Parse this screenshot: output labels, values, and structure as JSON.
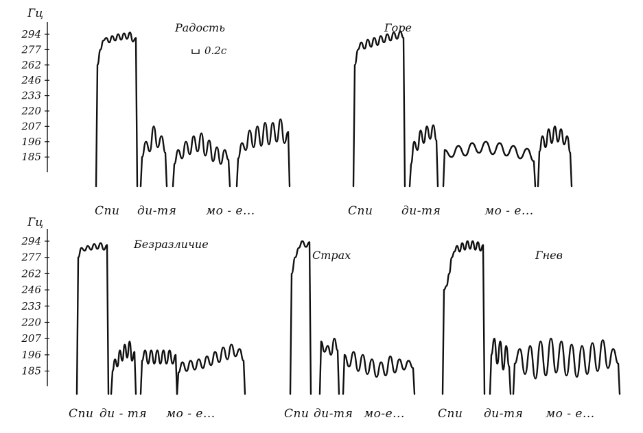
{
  "chart_data": [
    {
      "type": "line",
      "title": "Радость",
      "unit_label": "Гц",
      "y_ticks": [
        "294",
        "277",
        "262",
        "246",
        "233",
        "220",
        "207",
        "196",
        "185"
      ],
      "time_scale_label": "0.2с",
      "x_labels": [
        "Спи",
        "ди-тя",
        "мо - е..."
      ],
      "series": [
        {
          "values": [
            262,
            277,
            287,
            290,
            285,
            292,
            287,
            294,
            288,
            295,
            289,
            296,
            286,
            290
          ]
        },
        {
          "values": [
            185,
            196,
            189,
            207,
            192,
            200,
            188
          ]
        },
        {
          "values": [
            180,
            190,
            184,
            196,
            187,
            200,
            189,
            202,
            186,
            197,
            182,
            192,
            180,
            190,
            183
          ]
        },
        {
          "values": [
            184,
            195,
            190,
            204,
            192,
            207,
            193,
            210,
            194,
            210,
            196,
            213,
            195,
            203
          ]
        }
      ]
    },
    {
      "type": "line",
      "title": "Горе",
      "unit_label": "",
      "time_scale_label": "",
      "x_labels": [
        "Спи",
        "ди-тя",
        "мо - е..."
      ],
      "series": [
        {
          "values": [
            262,
            277,
            285,
            278,
            288,
            280,
            290,
            282,
            292,
            285,
            294,
            287,
            296,
            289,
            297,
            290
          ]
        },
        {
          "values": [
            180,
            196,
            190,
            204,
            195,
            207,
            198,
            208,
            197
          ]
        },
        {
          "values": [
            190,
            185,
            193,
            186,
            195,
            188,
            196,
            187,
            195,
            186,
            193,
            184,
            191,
            182
          ]
        },
        {
          "values": [
            189,
            200,
            192,
            205,
            195,
            207,
            196,
            205,
            194,
            200,
            188
          ]
        }
      ]
    },
    {
      "type": "line",
      "title": "Безразличие",
      "unit_label": "Гц",
      "y_ticks": [
        "294",
        "277",
        "262",
        "246",
        "233",
        "220",
        "207",
        "196",
        "185"
      ],
      "time_scale_label": "",
      "x_labels": [
        "Спи",
        "ди - тя",
        "мо - е..."
      ],
      "series": [
        {
          "values": [
            277,
            287,
            284,
            289,
            285,
            291,
            286,
            292,
            285,
            290
          ]
        },
        {
          "values": [
            185,
            193,
            188,
            199,
            192,
            203,
            194,
            205,
            192,
            198
          ]
        },
        {
          "values": [
            192,
            199,
            190,
            199,
            190,
            199,
            190,
            199,
            190,
            199,
            190,
            196
          ]
        },
        {
          "values": [
            184,
            191,
            185,
            192,
            186,
            193,
            187,
            195,
            189,
            198,
            191,
            201,
            193,
            203,
            195,
            200,
            192
          ]
        }
      ]
    },
    {
      "type": "line",
      "title": "Страх",
      "unit_label": "",
      "time_scale_label": "",
      "x_labels": [
        "Спи",
        "ди-тя",
        "мо-е..."
      ],
      "series": [
        {
          "values": [
            262,
            277,
            287,
            294,
            288,
            293
          ]
        },
        {
          "values": [
            205,
            198,
            202,
            196,
            207,
            199
          ]
        },
        {
          "values": [
            196,
            188,
            198,
            185,
            196,
            183,
            193,
            181,
            191,
            182,
            195,
            184,
            193,
            186,
            192,
            187
          ]
        }
      ]
    },
    {
      "type": "line",
      "title": "Гнев",
      "unit_label": "",
      "time_scale_label": "",
      "x_labels": [
        "Спи",
        "ди-тя",
        "мо - е..."
      ],
      "series": [
        {
          "values": [
            246,
            250,
            262,
            277,
            283,
            289,
            283,
            292,
            285,
            294,
            286,
            294,
            285,
            293,
            284,
            290
          ]
        },
        {
          "values": [
            196,
            207,
            190,
            205,
            186,
            202,
            188
          ]
        },
        {
          "values": [
            190,
            200,
            183,
            202,
            180,
            205,
            182,
            207,
            184,
            205,
            182,
            203,
            181,
            202,
            183,
            204,
            185,
            206,
            187,
            200,
            190
          ]
        }
      ]
    }
  ]
}
